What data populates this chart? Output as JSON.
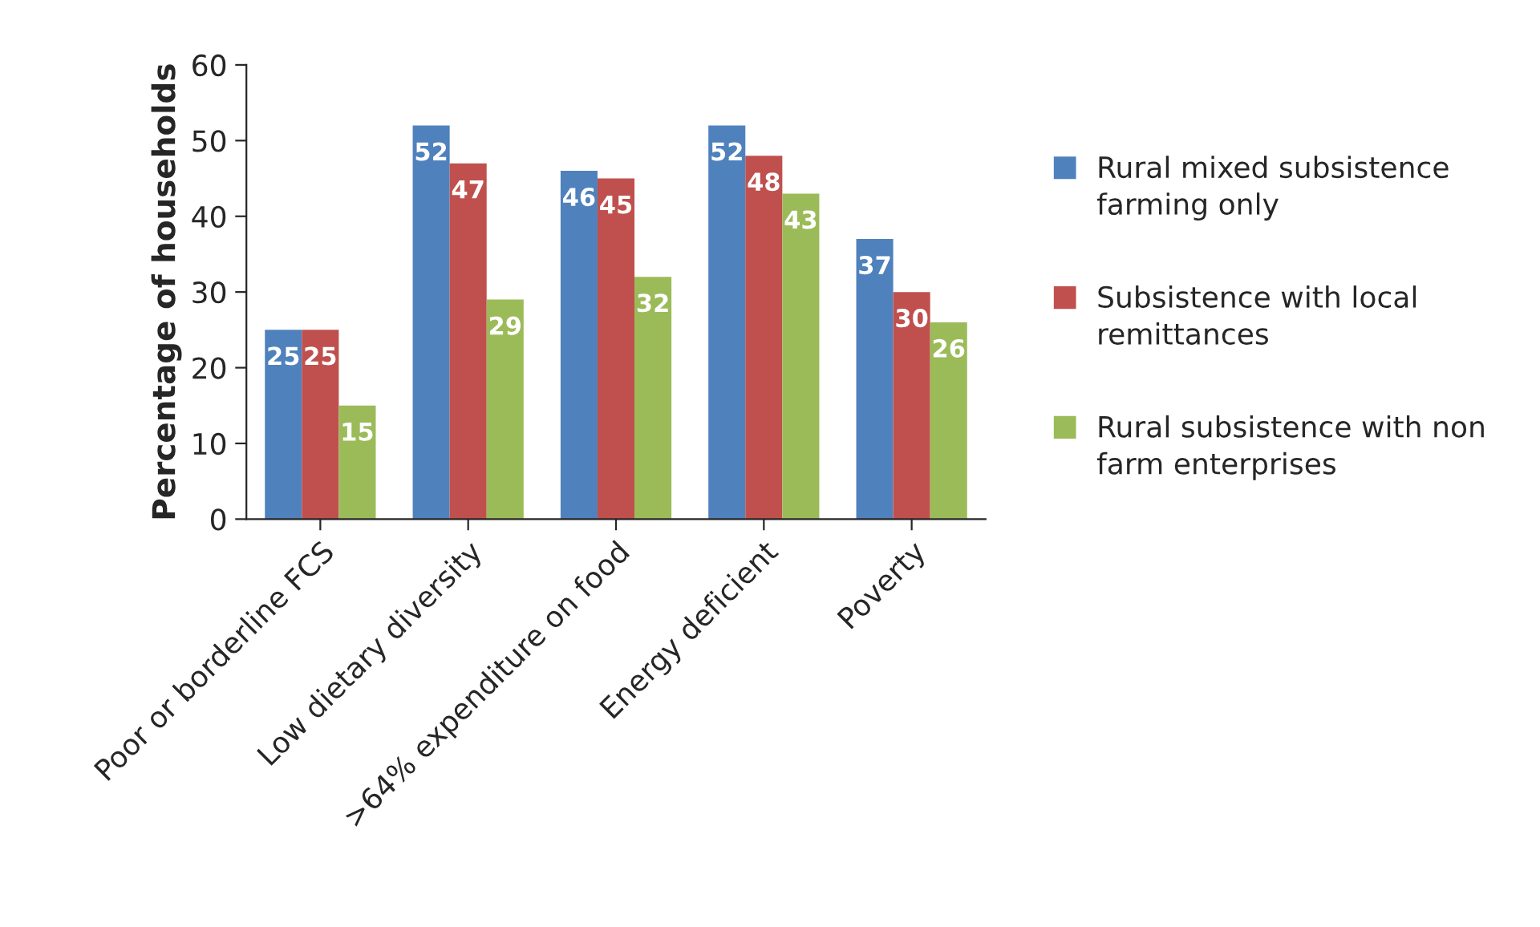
{
  "chart_data": {
    "type": "bar",
    "ylabel": "Percentage of households",
    "categories": [
      "Poor or borderline FCS",
      "Low dietary diversity",
      ">64% expenditure on food",
      "Energy deficient",
      "Poverty"
    ],
    "series": [
      {
        "name": "Rural mixed subsistence farming only",
        "color": "#4f81bd",
        "values": [
          25,
          52,
          46,
          52,
          37
        ]
      },
      {
        "name": "Subsistence with local remittances",
        "color": "#c0504d",
        "values": [
          25,
          47,
          45,
          48,
          30
        ]
      },
      {
        "name": "Rural subsistence with non farm enterprises",
        "color": "#9bbb59",
        "values": [
          15,
          29,
          32,
          43,
          26
        ]
      }
    ],
    "ylim": [
      0,
      60
    ],
    "yticks": [
      0,
      10,
      20,
      30,
      40,
      50,
      60
    ],
    "grid": false,
    "legend": "right",
    "data_labels": true
  }
}
